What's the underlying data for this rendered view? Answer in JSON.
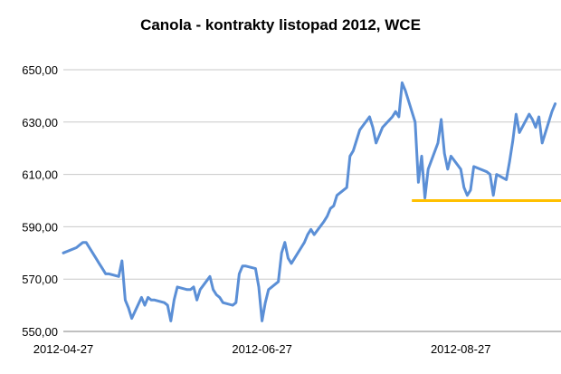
{
  "chart_data": {
    "type": "line",
    "title": "Canola - kontrakty listopad 2012, WCE",
    "xlabel": "",
    "ylabel": "",
    "y_tick_labels": [
      "550,00",
      "570,00",
      "590,00",
      "610,00",
      "630,00",
      "650,00"
    ],
    "y_ticks": [
      550,
      570,
      590,
      610,
      630,
      650
    ],
    "ylim": [
      550,
      655
    ],
    "x_tick_labels": [
      "2012-04-27",
      "2012-06-27",
      "2012-08-27"
    ],
    "x_ticks": [
      "2012-04-27",
      "2012-06-27",
      "2012-08-27"
    ],
    "xlim": [
      "2012-04-27",
      "2012-09-25"
    ],
    "grid": "horizontal",
    "legend": "none",
    "series": [
      {
        "color": "#5b8fd6",
        "points": [
          [
            "2012-04-27",
            580
          ],
          [
            "2012-05-01",
            582
          ],
          [
            "2012-05-02",
            583
          ],
          [
            "2012-05-03",
            584
          ],
          [
            "2012-05-04",
            584
          ],
          [
            "2012-05-07",
            578
          ],
          [
            "2012-05-08",
            576
          ],
          [
            "2012-05-09",
            574
          ],
          [
            "2012-05-10",
            572
          ],
          [
            "2012-05-11",
            572
          ],
          [
            "2012-05-14",
            571
          ],
          [
            "2012-05-15",
            577
          ],
          [
            "2012-05-16",
            562
          ],
          [
            "2012-05-17",
            559
          ],
          [
            "2012-05-18",
            555
          ],
          [
            "2012-05-21",
            563
          ],
          [
            "2012-05-22",
            560
          ],
          [
            "2012-05-23",
            563
          ],
          [
            "2012-05-24",
            562
          ],
          [
            "2012-05-25",
            562
          ],
          [
            "2012-05-28",
            561
          ],
          [
            "2012-05-29",
            560
          ],
          [
            "2012-05-30",
            554
          ],
          [
            "2012-05-31",
            562
          ],
          [
            "2012-06-01",
            567
          ],
          [
            "2012-06-04",
            566
          ],
          [
            "2012-06-05",
            566
          ],
          [
            "2012-06-06",
            567
          ],
          [
            "2012-06-07",
            562
          ],
          [
            "2012-06-08",
            566
          ],
          [
            "2012-06-11",
            571
          ],
          [
            "2012-06-12",
            566
          ],
          [
            "2012-06-13",
            564
          ],
          [
            "2012-06-14",
            563
          ],
          [
            "2012-06-15",
            561
          ],
          [
            "2012-06-18",
            560
          ],
          [
            "2012-06-19",
            561
          ],
          [
            "2012-06-20",
            572
          ],
          [
            "2012-06-21",
            575
          ],
          [
            "2012-06-22",
            575
          ],
          [
            "2012-06-25",
            574
          ],
          [
            "2012-06-26",
            567
          ],
          [
            "2012-06-27",
            554
          ],
          [
            "2012-06-28",
            561
          ],
          [
            "2012-06-29",
            566
          ],
          [
            "2012-07-02",
            569
          ],
          [
            "2012-07-03",
            580
          ],
          [
            "2012-07-04",
            584
          ],
          [
            "2012-07-05",
            578
          ],
          [
            "2012-07-06",
            576
          ],
          [
            "2012-07-09",
            582
          ],
          [
            "2012-07-10",
            584
          ],
          [
            "2012-07-11",
            587
          ],
          [
            "2012-07-12",
            589
          ],
          [
            "2012-07-13",
            587
          ],
          [
            "2012-07-16",
            592
          ],
          [
            "2012-07-17",
            594
          ],
          [
            "2012-07-18",
            597
          ],
          [
            "2012-07-19",
            598
          ],
          [
            "2012-07-20",
            602
          ],
          [
            "2012-07-23",
            605
          ],
          [
            "2012-07-24",
            617
          ],
          [
            "2012-07-25",
            619
          ],
          [
            "2012-07-26",
            623
          ],
          [
            "2012-07-27",
            627
          ],
          [
            "2012-07-30",
            632
          ],
          [
            "2012-07-31",
            628
          ],
          [
            "2012-08-01",
            622
          ],
          [
            "2012-08-02",
            625
          ],
          [
            "2012-08-03",
            628
          ],
          [
            "2012-08-06",
            632
          ],
          [
            "2012-08-07",
            634
          ],
          [
            "2012-08-08",
            632
          ],
          [
            "2012-08-09",
            645
          ],
          [
            "2012-08-10",
            642
          ],
          [
            "2012-08-13",
            630
          ],
          [
            "2012-08-14",
            607
          ],
          [
            "2012-08-15",
            617
          ],
          [
            "2012-08-16",
            601
          ],
          [
            "2012-08-17",
            612
          ],
          [
            "2012-08-20",
            622
          ],
          [
            "2012-08-21",
            631
          ],
          [
            "2012-08-22",
            618
          ],
          [
            "2012-08-23",
            612
          ],
          [
            "2012-08-24",
            617
          ],
          [
            "2012-08-27",
            612
          ],
          [
            "2012-08-28",
            605
          ],
          [
            "2012-08-29",
            602
          ],
          [
            "2012-08-30",
            604
          ],
          [
            "2012-08-31",
            613
          ],
          [
            "2012-09-04",
            611
          ],
          [
            "2012-09-05",
            610
          ],
          [
            "2012-09-06",
            602
          ],
          [
            "2012-09-07",
            610
          ],
          [
            "2012-09-10",
            608
          ],
          [
            "2012-09-11",
            615
          ],
          [
            "2012-09-12",
            623
          ],
          [
            "2012-09-13",
            633
          ],
          [
            "2012-09-14",
            626
          ],
          [
            "2012-09-17",
            633
          ],
          [
            "2012-09-18",
            631
          ],
          [
            "2012-09-19",
            628
          ],
          [
            "2012-09-20",
            632
          ],
          [
            "2012-09-21",
            622
          ],
          [
            "2012-09-24",
            634
          ],
          [
            "2012-09-25",
            637
          ]
        ]
      }
    ],
    "reference_line": {
      "value": 600,
      "color": "#ffc000"
    }
  }
}
